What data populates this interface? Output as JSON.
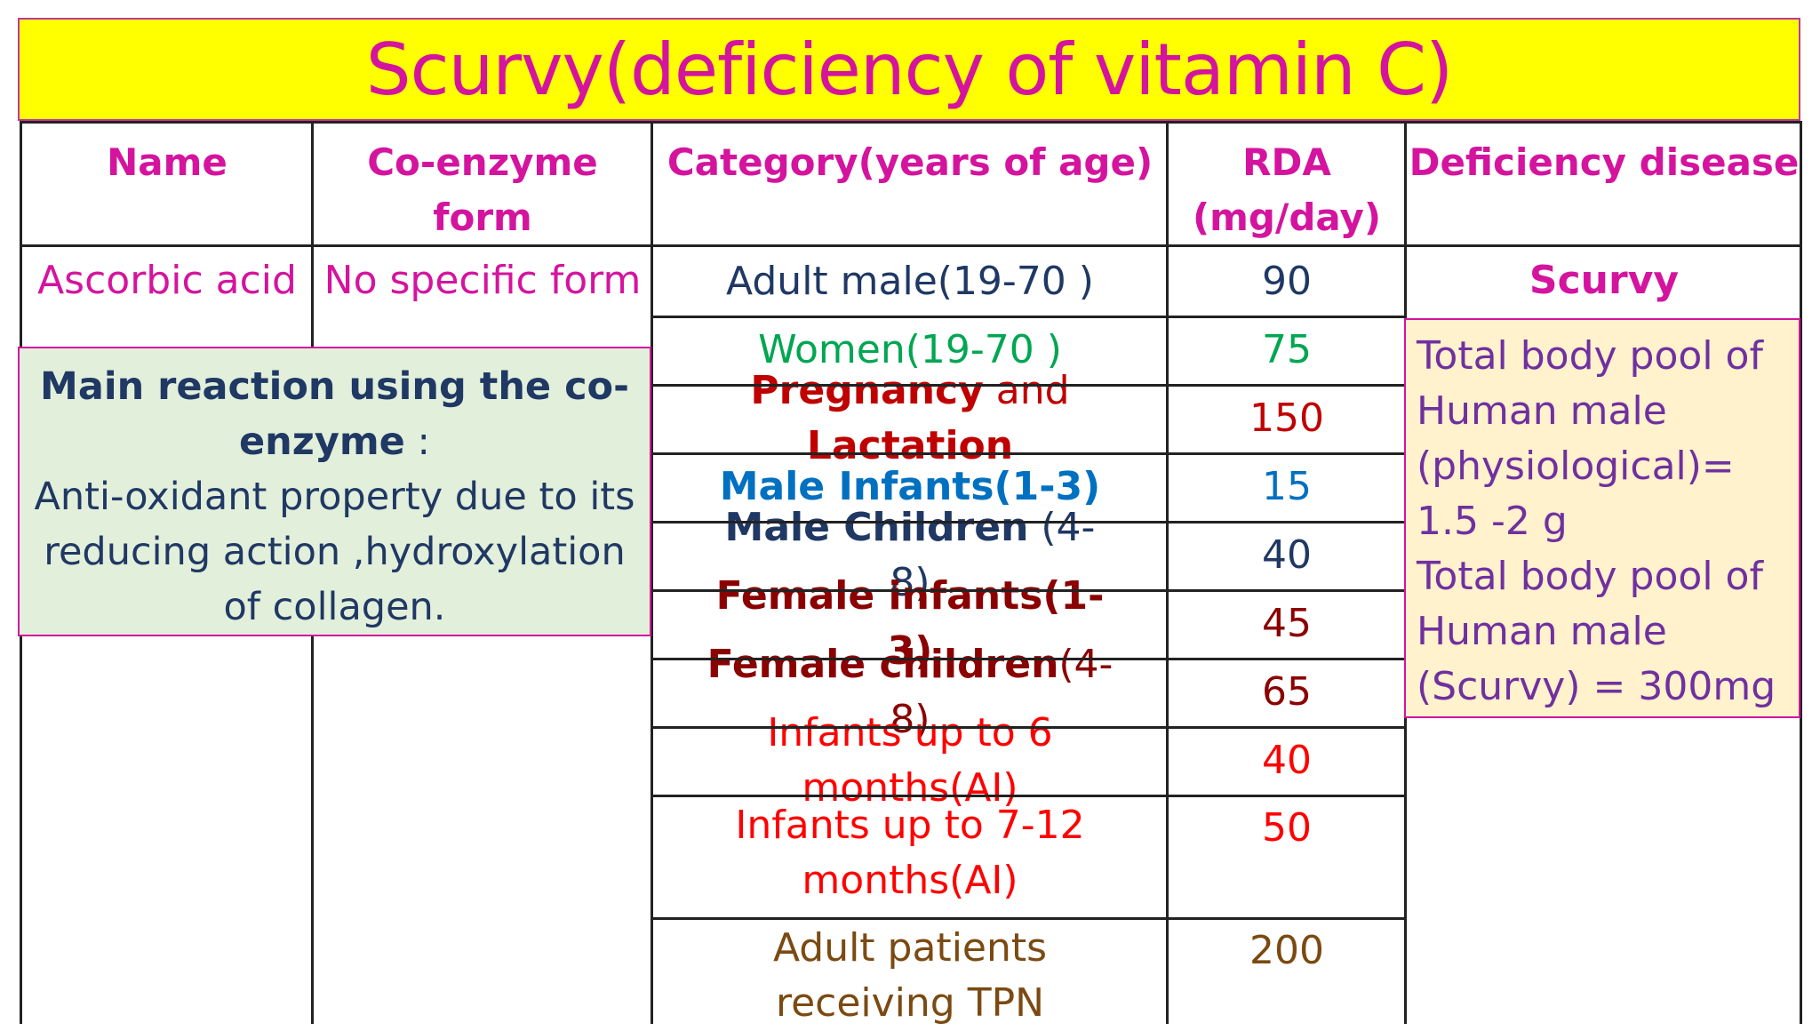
{
  "title": "Scurvy(deficiency of vitamin C)",
  "headers": {
    "name": "Name",
    "coenzyme": "Co-enzyme form",
    "category": "Category(years of age)",
    "rda_line1": "RDA",
    "rda_line2": "(mg/day)",
    "deficiency": "Deficiency disease"
  },
  "vitamin": {
    "name": "Ascorbic acid",
    "coenzyme": "No specific form",
    "disease": "Scurvy"
  },
  "rows": [
    {
      "parts": [
        {
          "t": "Adult male(19-70 )",
          "b": false
        }
      ],
      "rda": "90",
      "color": "#1f3864"
    },
    {
      "parts": [
        {
          "t": "Women(19-70 )",
          "b": false
        }
      ],
      "rda": "75",
      "color": "#00a651"
    },
    {
      "parts": [
        {
          "t": "Pregnancy",
          "b": true
        },
        {
          "t": " and ",
          "b": false
        },
        {
          "t": "Lactation",
          "b": true
        }
      ],
      "rda": "150",
      "color": "#c00000"
    },
    {
      "parts": [
        {
          "t": "Male Infants(1-3)",
          "b": true
        }
      ],
      "rda": "15",
      "color": "#0070c0"
    },
    {
      "parts": [
        {
          "t": "Male Children",
          "b": true
        },
        {
          "t": " (4-8)",
          "b": false
        }
      ],
      "rda": "40",
      "color": "#1f3864"
    },
    {
      "parts": [
        {
          "t": "Female infants(1-3)",
          "b": true
        }
      ],
      "rda": "45",
      "color": "#8b0000"
    },
    {
      "parts": [
        {
          "t": "Female children",
          "b": true
        },
        {
          "t": "(4-8)",
          "b": false
        }
      ],
      "rda": "65",
      "color": "#8b0000"
    },
    {
      "parts": [
        {
          "t": "Infants up to 6 months(AI)",
          "b": false
        }
      ],
      "rda": "40",
      "color": "#ff0000"
    },
    {
      "parts": [
        {
          "t": "Infants up to 7-12 months(AI)",
          "b": false
        }
      ],
      "rda": "50",
      "color": "#ff0000"
    },
    {
      "parts": [
        {
          "t": "Adult patients receiving TPN",
          "b": false
        }
      ],
      "rda": "200",
      "color": "#7b4a12"
    }
  ],
  "reaction": {
    "heading": "Main reaction using the co-enzyme",
    "colon": " :",
    "text": "Anti-oxidant property due to its reducing action ,hydroxylation of collagen."
  },
  "body_pool": {
    "lines": [
      "Total body pool of",
      "Human male",
      "(physiological)=",
      "1.5 -2 g",
      "Total body pool of",
      "Human male",
      "(Scurvy) = 300mg"
    ]
  }
}
